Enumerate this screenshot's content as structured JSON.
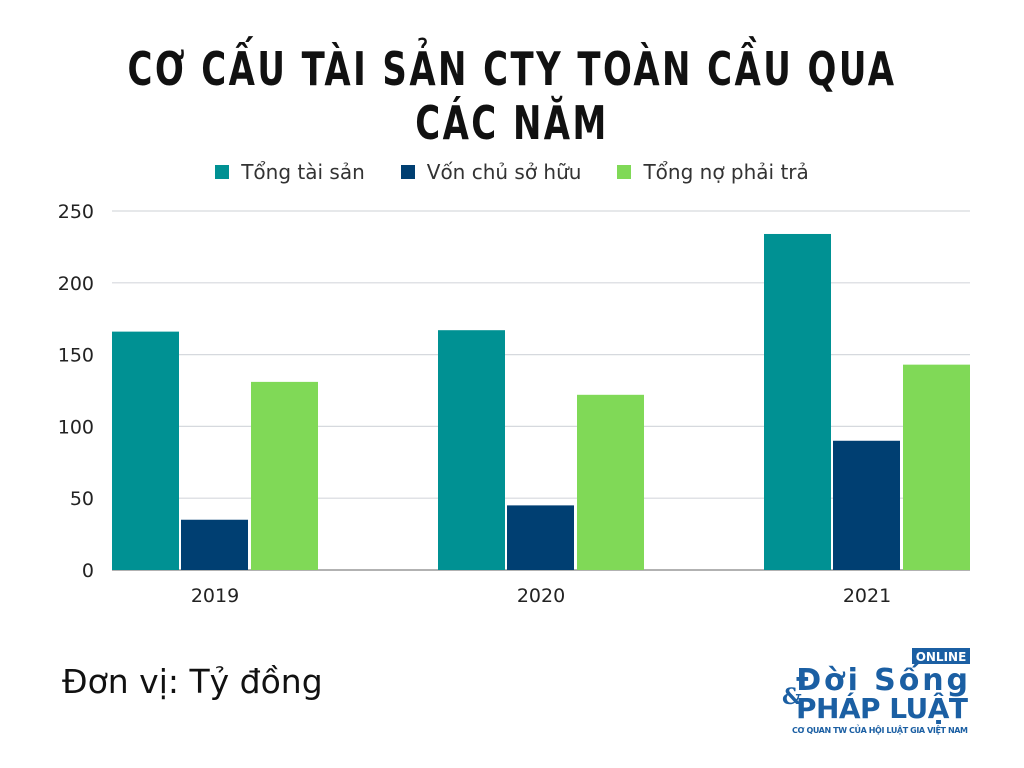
{
  "chart_data": {
    "type": "bar",
    "title": "CƠ CẤU TÀI SẢN CTY TOÀN CẦU QUA CÁC NĂM",
    "categories": [
      "2019",
      "2020",
      "2021"
    ],
    "series": [
      {
        "name": "Tổng tài sản",
        "color": "#009193",
        "values": [
          166,
          167,
          234
        ]
      },
      {
        "name": "Vốn chủ sở hữu",
        "color": "#003f72",
        "values": [
          35,
          45,
          90
        ]
      },
      {
        "name": "Tổng nợ phải trả",
        "color": "#80d957",
        "values": [
          131,
          122,
          143
        ]
      }
    ],
    "ylim": [
      0,
      250
    ],
    "yticks": [
      0,
      50,
      100,
      150,
      200,
      250
    ],
    "grid": true,
    "legend": "top",
    "xlabel": "",
    "ylabel": ""
  },
  "unit_note": "Đơn vị: Tỷ đồng",
  "logo": {
    "online": "ONLINE",
    "line1": "Đời Sống",
    "line2": "PHÁP LUẬT",
    "amp": "&",
    "tagline": "CƠ QUAN TW CỦA HỘI LUẬT GIA VIỆT NAM",
    "color": "#1b5fa3"
  }
}
